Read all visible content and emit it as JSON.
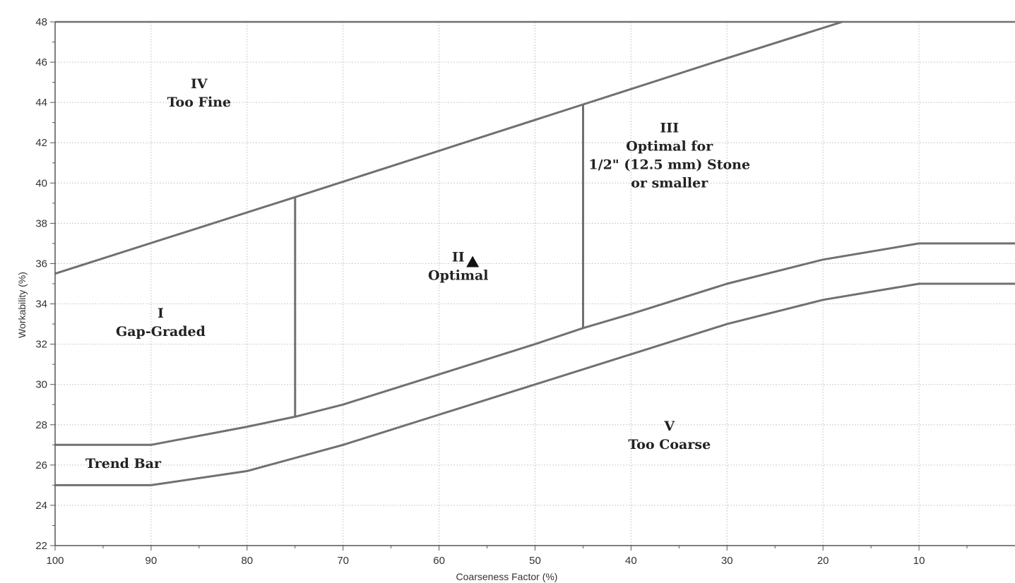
{
  "chart_data": {
    "type": "line",
    "xlabel": "Coarseness Factor (%)",
    "ylabel": "Workability (%)",
    "xlim": [
      100,
      0
    ],
    "ylim": [
      22,
      48
    ],
    "x_reversed": true,
    "x_ticks": [
      100,
      90,
      80,
      70,
      60,
      50,
      40,
      30,
      20,
      10
    ],
    "y_ticks": [
      22,
      24,
      26,
      28,
      30,
      32,
      34,
      36,
      38,
      40,
      42,
      44,
      46,
      48
    ],
    "grid": true,
    "line_color": "#707070",
    "grid_color": "#cccccc",
    "boundaries": [
      {
        "id": "upper",
        "points": [
          [
            100,
            35.5
          ],
          [
            75,
            39.3
          ],
          [
            45,
            43.9
          ],
          [
            30,
            46.2
          ],
          [
            18,
            48
          ]
        ]
      },
      {
        "id": "lower-trend",
        "points": [
          [
            100,
            27
          ],
          [
            90,
            27
          ],
          [
            80,
            27.9
          ],
          [
            75,
            28.4
          ],
          [
            70,
            29
          ],
          [
            60,
            30.5
          ],
          [
            50,
            32
          ],
          [
            45,
            32.8
          ],
          [
            40,
            33.5
          ],
          [
            30,
            35
          ],
          [
            20,
            36.2
          ],
          [
            10,
            37
          ],
          [
            0,
            37
          ]
        ]
      },
      {
        "id": "bottom-trend",
        "points": [
          [
            100,
            25
          ],
          [
            90,
            25
          ],
          [
            80,
            25.7
          ],
          [
            70,
            27
          ],
          [
            60,
            28.5
          ],
          [
            50,
            30
          ],
          [
            40,
            31.5
          ],
          [
            30,
            33
          ],
          [
            20,
            34.2
          ],
          [
            10,
            35
          ],
          [
            0,
            35
          ]
        ]
      },
      {
        "id": "divider-75",
        "points": [
          [
            75,
            28.4
          ],
          [
            75,
            39.3
          ]
        ]
      },
      {
        "id": "divider-45",
        "points": [
          [
            45,
            32.8
          ],
          [
            45,
            43.9
          ]
        ]
      }
    ],
    "point": {
      "x": 56.5,
      "y": 36,
      "shape": "triangle"
    },
    "annotations": [
      {
        "lines": [
          "IV",
          "Too Fine"
        ],
        "x": 85,
        "y": 44.5
      },
      {
        "lines": [
          "III",
          "Optimal for",
          "1/2\" (12.5 mm) Stone",
          "or smaller"
        ],
        "x": 36,
        "y": 41.4
      },
      {
        "lines": [
          "II",
          "Optimal"
        ],
        "x": 58,
        "y": 35.9
      },
      {
        "lines": [
          "I",
          "Gap-Graded"
        ],
        "x": 89,
        "y": 33.1
      },
      {
        "lines": [
          "V",
          "Too Coarse"
        ],
        "x": 36,
        "y": 27.5
      },
      {
        "lines": [
          "Trend Bar"
        ],
        "x": 92.9,
        "y": 26.1
      }
    ]
  }
}
